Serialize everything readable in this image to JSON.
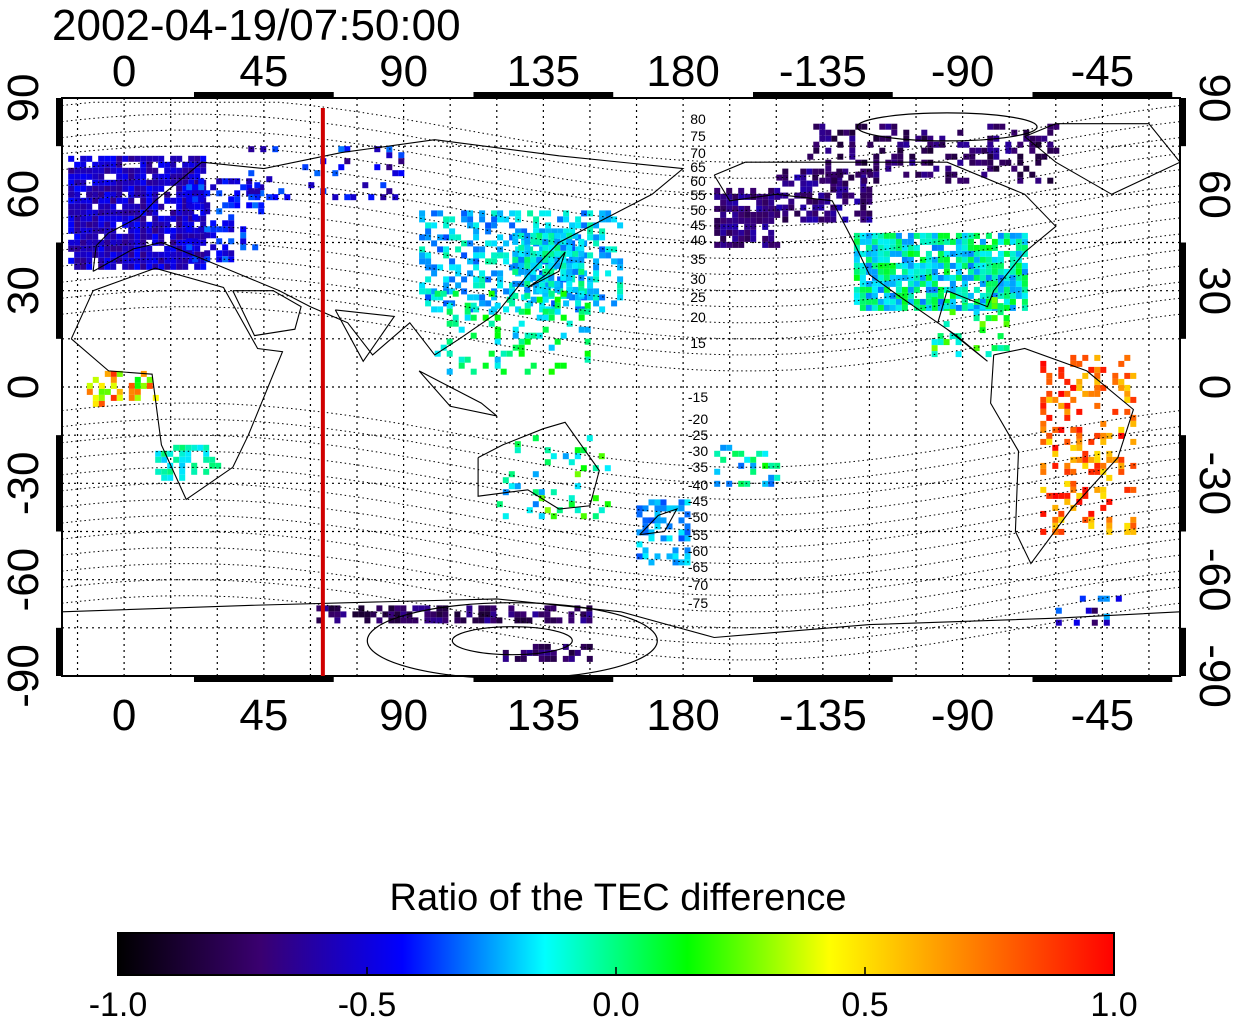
{
  "header": {
    "timestamp": "2002-04-19/07:50:00"
  },
  "map": {
    "lon_ticks": [
      "0",
      "45",
      "90",
      "135",
      "180",
      "-135",
      "-90",
      "-45"
    ],
    "lon_tick_values": [
      0,
      45,
      90,
      135,
      180,
      225,
      270,
      315
    ],
    "lat_ticks": [
      "90",
      "60",
      "30",
      "0",
      "-30",
      "-60",
      "-90"
    ],
    "lat_tick_values": [
      90,
      60,
      30,
      0,
      -30,
      -60,
      -90
    ],
    "lon_range": [
      -20,
      340
    ],
    "lat_range": [
      -90,
      90
    ],
    "grid_dotted": true,
    "highlight_meridian_lon": 64,
    "highlight_color": "#d00000",
    "contour_labels_north": [
      "80",
      "75",
      "70",
      "65",
      "60",
      "55",
      "50",
      "45",
      "40",
      "35",
      "30",
      "25",
      "20",
      "15"
    ],
    "contour_labels_south": [
      "-15",
      "-20",
      "-25",
      "-30",
      "-35",
      "-40",
      "-45",
      "-50",
      "-55",
      "-60",
      "-65",
      "-70",
      "-75"
    ]
  },
  "colorbar": {
    "title": "Ratio of the TEC difference",
    "tick_labels": [
      "-1.0",
      "-0.5",
      "0.0",
      "0.5",
      "1.0"
    ],
    "range": [
      -1.0,
      1.0
    ],
    "colors": [
      "#000000",
      "#3a0070",
      "#0000ff",
      "#00ffff",
      "#00ff00",
      "#ffff00",
      "#ff8000",
      "#ff0000"
    ]
  }
}
